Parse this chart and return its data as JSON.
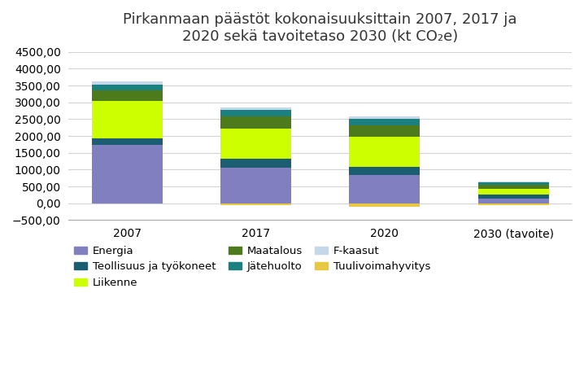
{
  "title": "Pirkanmaan päästöt kokonaisuuksittain 2007, 2017 ja\n2020 sekä tavoitetaso 2030 (kt CO₂e)",
  "categories": [
    "2007",
    "2017",
    "2020",
    "2030 (tavoite)"
  ],
  "series": [
    {
      "name": "Energia",
      "values": [
        1730,
        1050,
        830,
        130
      ],
      "color": "#8080c0"
    },
    {
      "name": "Teollisuus ja työkoneet",
      "values": [
        210,
        270,
        260,
        130
      ],
      "color": "#1b5e72"
    },
    {
      "name": "Liikenne",
      "values": [
        1100,
        890,
        880,
        180
      ],
      "color": "#ccff00"
    },
    {
      "name": "Maatalous",
      "values": [
        320,
        360,
        355,
        100
      ],
      "color": "#4d7a1a"
    },
    {
      "name": "Jätehuolto",
      "values": [
        155,
        195,
        195,
        85
      ],
      "color": "#1a8080"
    },
    {
      "name": "F-kaasut",
      "values": [
        100,
        80,
        55,
        30
      ],
      "color": "#c5d8ea"
    },
    {
      "name": "Tuulivoimahyvitys",
      "values": [
        -5,
        -50,
        -100,
        -50
      ],
      "color": "#e8c840"
    }
  ],
  "ylim": [
    -500,
    4500
  ],
  "yticks": [
    -500,
    0,
    500,
    1000,
    1500,
    2000,
    2500,
    3000,
    3500,
    4000,
    4500
  ],
  "bar_width": 0.55,
  "background_color": "#ffffff",
  "grid_color": "#d3d3d3",
  "title_fontsize": 13,
  "tick_fontsize": 10,
  "legend_fontsize": 9.5
}
